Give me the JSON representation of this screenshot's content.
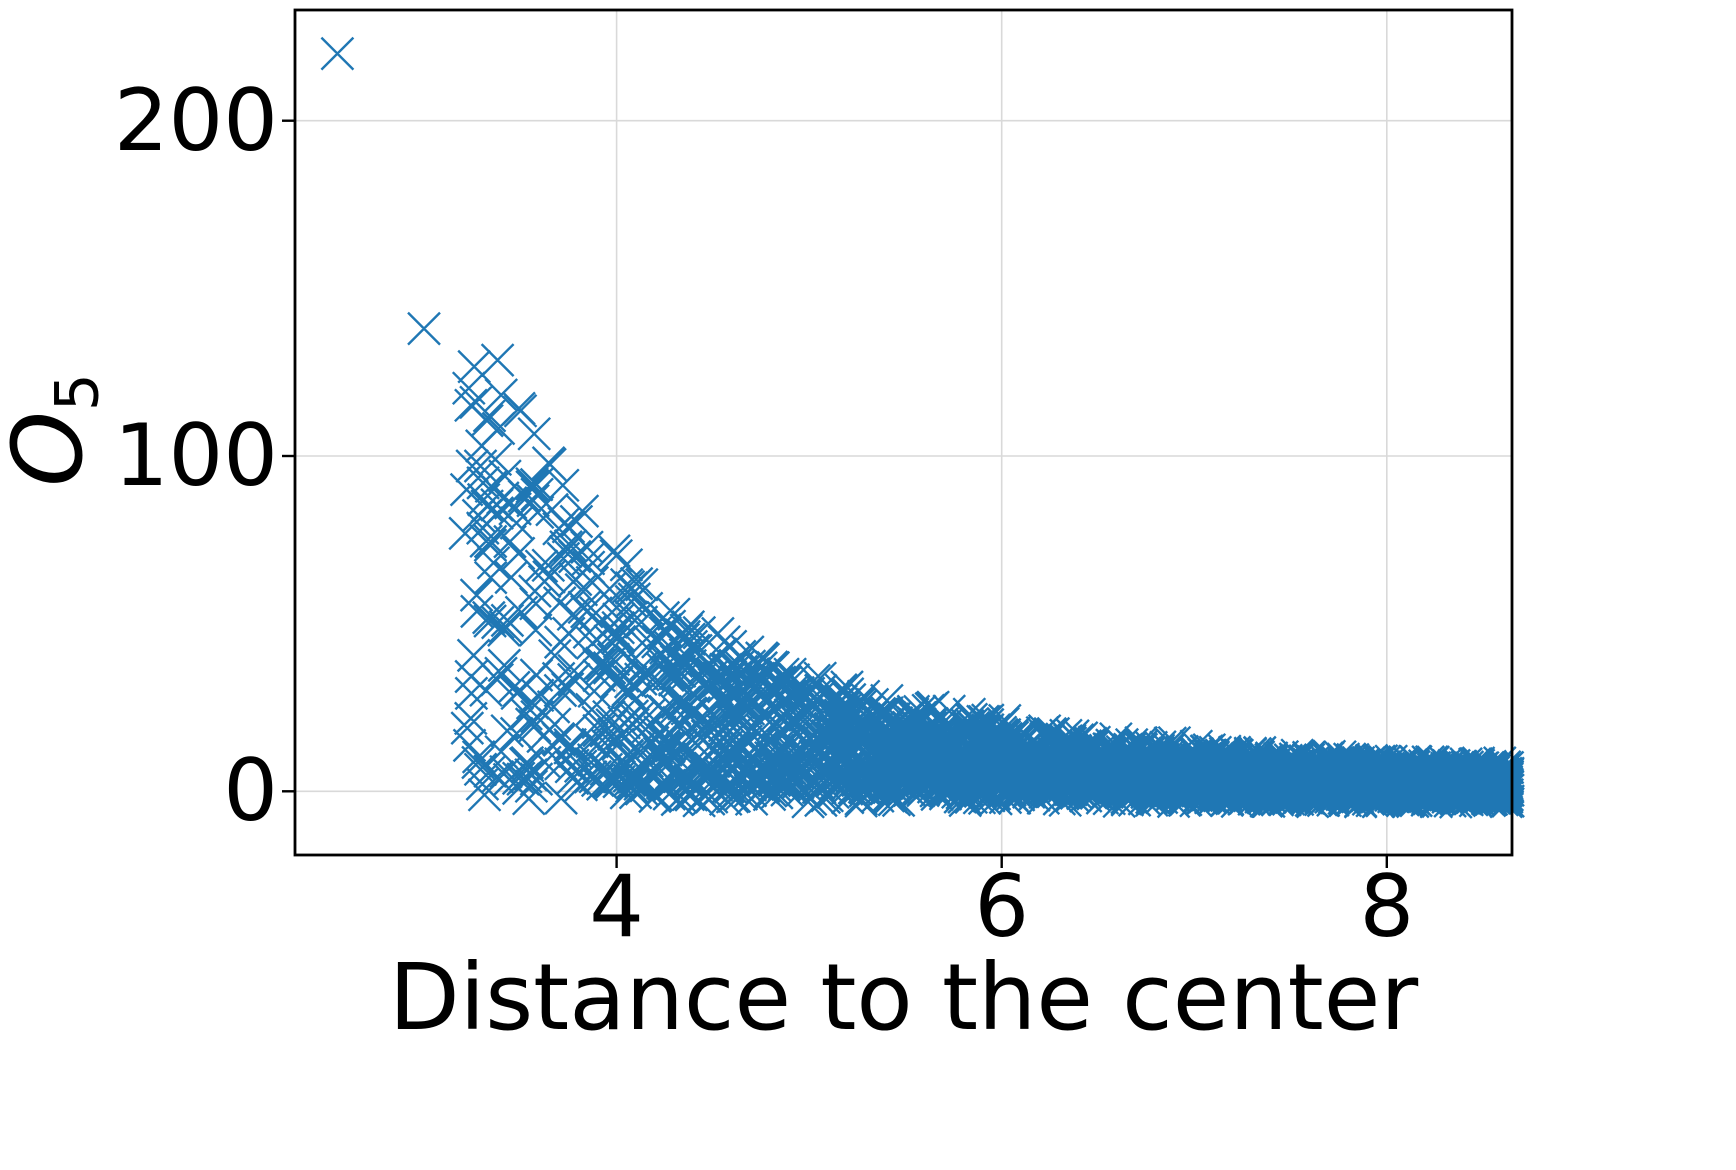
{
  "figure": {
    "background": "#ffffff"
  },
  "chart_data": {
    "type": "scatter",
    "marker": "x",
    "marker_color": "#1f77b4",
    "marker_size_px": 32,
    "title": "",
    "xlabel": "Distance to the center",
    "ylabel_main": "O",
    "ylabel_sub": "5",
    "xlim": [
      2.33,
      8.65
    ],
    "ylim": [
      -19,
      233
    ],
    "xticks": [
      4,
      6,
      8
    ],
    "xtick_labels": [
      "4",
      "6",
      "8"
    ],
    "yticks": [
      0,
      100,
      200
    ],
    "ytick_labels": [
      "0",
      "100",
      "200"
    ],
    "grid": true,
    "grid_color": "#d9d9d9",
    "legend": null,
    "highlight_points": [
      [
        2.55,
        220
      ],
      [
        3.0,
        138
      ],
      [
        3.27,
        116
      ],
      [
        3.34,
        112
      ],
      [
        3.3,
        103
      ],
      [
        3.37,
        99
      ],
      [
        3.25,
        97
      ],
      [
        3.42,
        94
      ],
      [
        3.35,
        91
      ],
      [
        3.31,
        87
      ],
      [
        3.45,
        86
      ],
      [
        3.38,
        83
      ],
      [
        3.48,
        80
      ],
      [
        3.52,
        88
      ]
    ],
    "cloud": {
      "n": 3500,
      "x_min": 3.2,
      "x_max": 8.63,
      "x_density_power": 2,
      "envelope_A": 8000,
      "envelope_p": 3.4,
      "y_skew": 1.35,
      "y_noise": 3.5,
      "description": "dense decaying cloud: y ~ A*x^(-p)*u^skew + noise, x sampled with density proportional to x^2"
    }
  }
}
